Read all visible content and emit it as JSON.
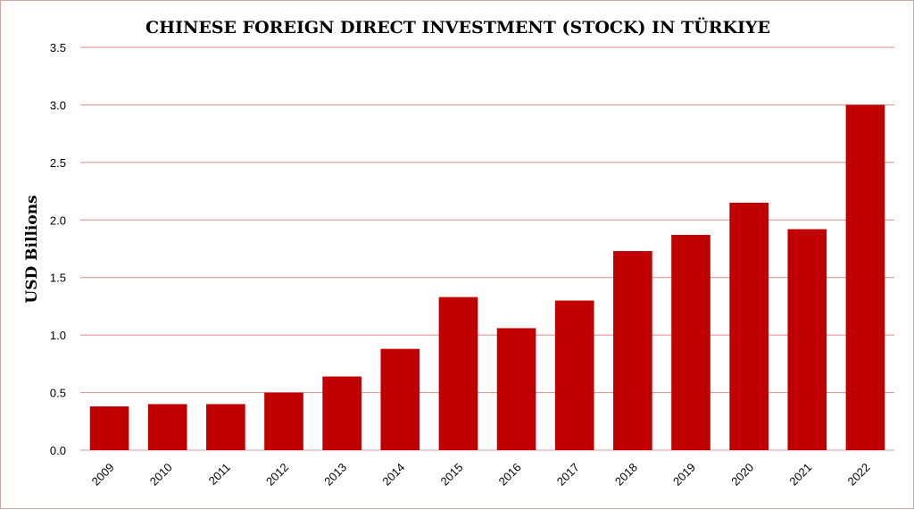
{
  "chart_data": {
    "type": "bar",
    "title": "CHINESE FOREIGN DIRECT INVESTMENT (STOCK) IN TÜRKIYE",
    "xlabel": "",
    "ylabel": "USD Billions",
    "categories": [
      "2009",
      "2010",
      "2011",
      "2012",
      "2013",
      "2014",
      "2015",
      "2016",
      "2017",
      "2018",
      "2019",
      "2020",
      "2021",
      "2022"
    ],
    "values": [
      0.38,
      0.4,
      0.4,
      0.5,
      0.64,
      0.88,
      1.33,
      1.06,
      1.3,
      1.73,
      1.87,
      2.15,
      1.92,
      3.0
    ],
    "ylim": [
      0,
      3.5
    ],
    "yticks": [
      "0.0",
      "0.5",
      "1.0",
      "1.5",
      "2.0",
      "2.5",
      "3.0",
      "3.5"
    ],
    "ytick_values": [
      0,
      0.5,
      1.0,
      1.5,
      2.0,
      2.5,
      3.0,
      3.5
    ],
    "grid": true,
    "colors": {
      "bar": "#c00000",
      "grid": "#d88c8c",
      "frame": "#d9a3a3"
    }
  }
}
